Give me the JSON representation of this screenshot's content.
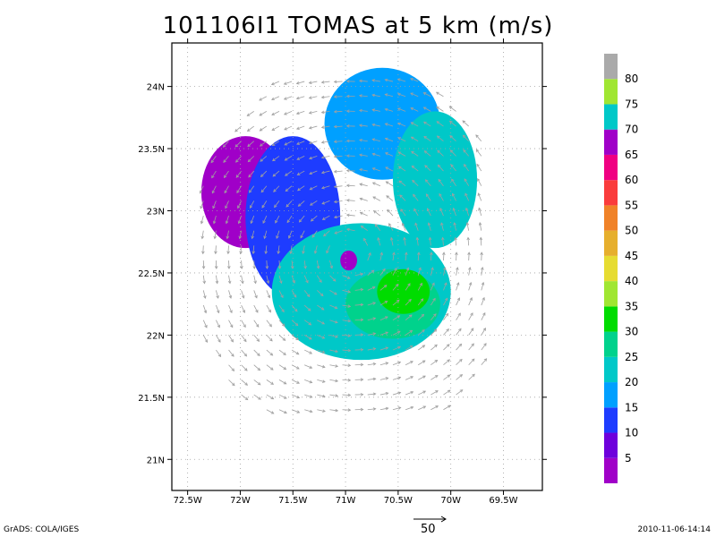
{
  "title": "101106I1 TOMAS at 5 km (m/s)",
  "footer": {
    "left": "GrADS: COLA/IGES",
    "right": "2010-11-06-14:14"
  },
  "reference_vector": {
    "label": "50",
    "value": 50
  },
  "colors": {
    "frame": "#000000",
    "grid": "#a0a0a0",
    "vector": "#a0a0a0"
  },
  "chart_data": {
    "type": "heatmap",
    "title": "101106I1 TOMAS at 5 km (m/s)",
    "xlabel": "",
    "ylabel": "",
    "x_ticks": [
      {
        "value": -72.5,
        "label": "72.5W"
      },
      {
        "value": -72.0,
        "label": "72W"
      },
      {
        "value": -71.5,
        "label": "71.5W"
      },
      {
        "value": -71.0,
        "label": "71W"
      },
      {
        "value": -70.5,
        "label": "70.5W"
      },
      {
        "value": -70.0,
        "label": "70W"
      },
      {
        "value": -69.5,
        "label": "69.5W"
      }
    ],
    "y_ticks": [
      {
        "value": 21.0,
        "label": "21N"
      },
      {
        "value": 21.5,
        "label": "21.5N"
      },
      {
        "value": 22.0,
        "label": "22N"
      },
      {
        "value": 22.5,
        "label": "22.5N"
      },
      {
        "value": 23.0,
        "label": "23N"
      },
      {
        "value": 23.5,
        "label": "23.5N"
      },
      {
        "value": 24.0,
        "label": "24N"
      }
    ],
    "xlim": [
      -72.65,
      -69.13
    ],
    "ylim": [
      20.75,
      24.35
    ],
    "grid": true,
    "colorbar": {
      "labels": [
        "5",
        "10",
        "15",
        "20",
        "25",
        "30",
        "35",
        "40",
        "45",
        "50",
        "55",
        "60",
        "65",
        "70",
        "75",
        "80"
      ],
      "colors": [
        "#a000c8",
        "#6e00dc",
        "#1e3cff",
        "#00a0ff",
        "#00c8c8",
        "#00d28c",
        "#00dc00",
        "#a0e632",
        "#e6dc32",
        "#e6af2d",
        "#f08228",
        "#fa3c3c",
        "#f00082",
        "#a000c8",
        "#00c8c8",
        "#a0e632",
        "#aaaaaa"
      ]
    },
    "regions": [
      {
        "name": "purple-nw",
        "lon": -71.95,
        "lat": 23.15,
        "rx": 0.42,
        "ry": 0.45,
        "level": 5
      },
      {
        "name": "blue-west",
        "lon": -71.5,
        "lat": 22.95,
        "rx": 0.45,
        "ry": 0.65,
        "level": 15
      },
      {
        "name": "blue-north",
        "lon": -70.65,
        "lat": 23.7,
        "rx": 0.55,
        "ry": 0.45,
        "level": 20
      },
      {
        "name": "teal-northeast",
        "lon": -70.15,
        "lat": 23.25,
        "rx": 0.4,
        "ry": 0.55,
        "level": 25
      },
      {
        "name": "teal-center",
        "lon": -70.85,
        "lat": 22.35,
        "rx": 0.85,
        "ry": 0.55,
        "level": 25
      },
      {
        "name": "green-core",
        "lon": -70.55,
        "lat": 22.25,
        "rx": 0.45,
        "ry": 0.28,
        "level": 30
      },
      {
        "name": "bright-green-max",
        "lon": -70.45,
        "lat": 22.35,
        "rx": 0.25,
        "ry": 0.18,
        "level": 35
      },
      {
        "name": "purple-center",
        "lon": -70.97,
        "lat": 22.6,
        "rx": 0.08,
        "ry": 0.08,
        "level": 5
      }
    ]
  }
}
